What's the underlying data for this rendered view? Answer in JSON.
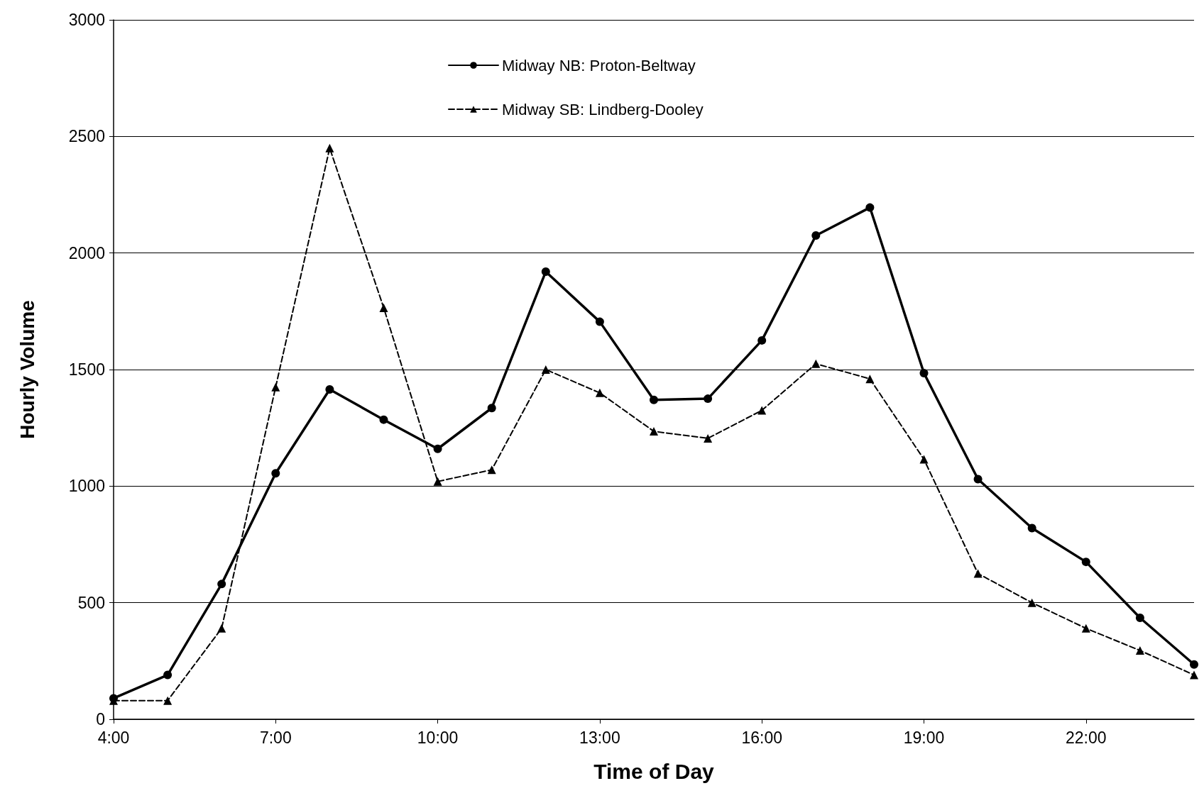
{
  "chart_data": {
    "type": "line",
    "xlabel": "Time of Day",
    "ylabel": "Hourly Volume",
    "x": [
      4,
      5,
      6,
      7,
      8,
      9,
      10,
      11,
      12,
      13,
      14,
      15,
      16,
      17,
      18,
      19,
      20,
      21,
      22,
      23,
      24
    ],
    "series": [
      {
        "name": "Midway NB: Proton-Beltway",
        "color": "#000000",
        "marker": "circle",
        "line_style": "solid",
        "values": [
          90,
          190,
          580,
          1055,
          1415,
          1285,
          1160,
          1335,
          1920,
          1705,
          1370,
          1375,
          1625,
          2075,
          2195,
          1485,
          1030,
          820,
          675,
          435,
          235
        ]
      },
      {
        "name": "Midway SB: Lindberg-Dooley",
        "color": "#000000",
        "marker": "triangle",
        "line_style": "dashed",
        "values": [
          80,
          80,
          390,
          1425,
          2450,
          1765,
          1020,
          1070,
          1500,
          1400,
          1235,
          1205,
          1325,
          1525,
          1460,
          1115,
          625,
          500,
          390,
          295,
          190
        ]
      }
    ],
    "xlim": [
      4,
      24
    ],
    "xticks": [
      {
        "value": 4,
        "label": "4:00"
      },
      {
        "value": 7,
        "label": "7:00"
      },
      {
        "value": 10,
        "label": "10:00"
      },
      {
        "value": 13,
        "label": "13:00"
      },
      {
        "value": 16,
        "label": "16:00"
      },
      {
        "value": 19,
        "label": "19:00"
      },
      {
        "value": 22,
        "label": "22:00"
      }
    ],
    "ylim": [
      0,
      3000
    ],
    "yticks": [
      0,
      500,
      1000,
      1500,
      2000,
      2500,
      3000
    ],
    "grid": "y",
    "legend": "top"
  }
}
